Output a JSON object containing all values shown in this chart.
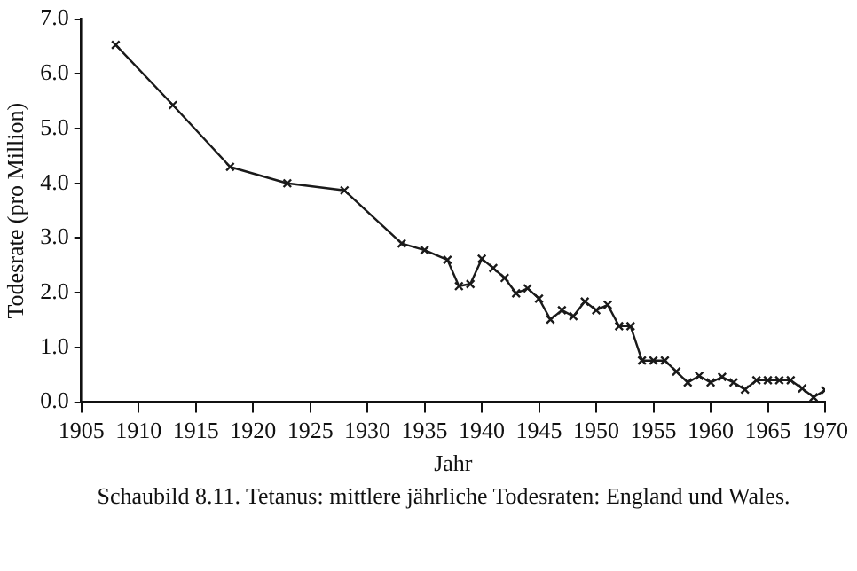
{
  "chart_data": {
    "type": "line",
    "xlabel": "Jahr",
    "ylabel": "Todesrate (pro Million)",
    "marker": "cross",
    "grid": false,
    "legend": false,
    "annotations": [
      "Schaubild 8.11. Tetanus: mittlere jährliche Todesraten: England und Wales."
    ],
    "xlim": [
      1905,
      1970
    ],
    "xticks": [
      1905,
      1910,
      1915,
      1920,
      1925,
      1930,
      1935,
      1940,
      1945,
      1950,
      1955,
      1960,
      1965,
      1970
    ],
    "ylim": [
      0,
      7
    ],
    "yticks": [
      {
        "value": 0,
        "label": "0.0"
      },
      {
        "value": 1,
        "label": "1.0"
      },
      {
        "value": 2,
        "label": "2.0"
      },
      {
        "value": 3,
        "label": "3.0"
      },
      {
        "value": 4,
        "label": "4.0"
      },
      {
        "value": 5,
        "label": "5.0"
      },
      {
        "value": 6,
        "label": "6.0"
      },
      {
        "value": 7,
        "label": "7.0"
      }
    ],
    "series": [
      {
        "color": "#1a1a1a",
        "x": [
          1908,
          1913,
          1918,
          1923,
          1928,
          1933,
          1935,
          1937,
          1938,
          1939,
          1940,
          1941,
          1942,
          1943,
          1944,
          1945,
          1946,
          1947,
          1948,
          1949,
          1950,
          1951,
          1952,
          1953,
          1954,
          1955,
          1956,
          1957,
          1958,
          1959,
          1960,
          1961,
          1962,
          1963,
          1964,
          1965,
          1966,
          1967,
          1968,
          1969,
          1970
        ],
        "values": [
          6.53,
          5.43,
          4.3,
          4.0,
          3.87,
          2.9,
          2.78,
          2.6,
          2.12,
          2.16,
          2.62,
          2.45,
          2.27,
          1.99,
          2.08,
          1.89,
          1.51,
          1.68,
          1.57,
          1.84,
          1.68,
          1.78,
          1.39,
          1.39,
          0.76,
          0.76,
          0.76,
          0.56,
          0.36,
          0.48,
          0.36,
          0.46,
          0.36,
          0.23,
          0.4,
          0.4,
          0.4,
          0.4,
          0.25,
          0.09,
          0.22
        ]
      }
    ]
  }
}
